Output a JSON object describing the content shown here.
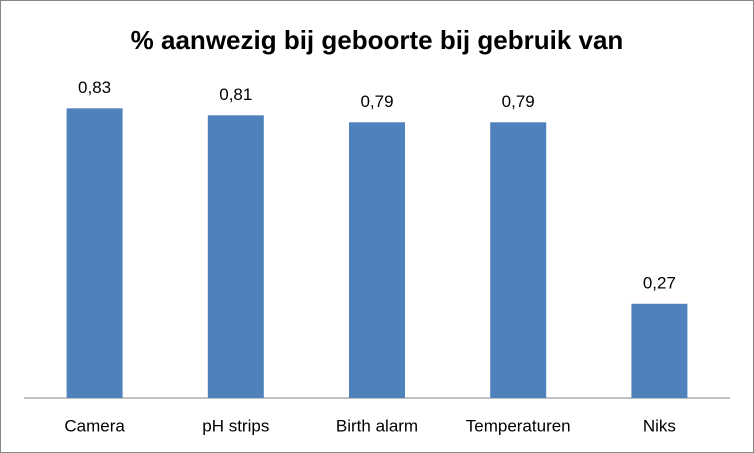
{
  "chart_data": {
    "type": "bar",
    "title": "% aanwezig bij geboorte bij gebruik van",
    "categories": [
      "Camera",
      "pH strips",
      "Birth alarm",
      "Temperaturen",
      "Niks"
    ],
    "values": [
      0.83,
      0.81,
      0.79,
      0.79,
      0.27
    ],
    "value_labels": [
      "0,83",
      "0,81",
      "0,79",
      "0,79",
      "0,27"
    ],
    "color": "#4f81bd"
  }
}
